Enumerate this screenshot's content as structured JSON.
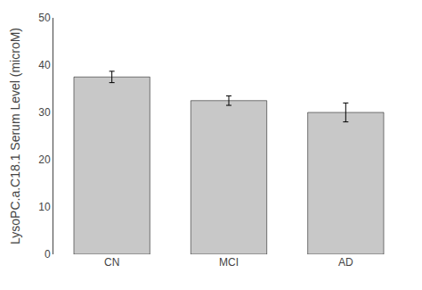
{
  "chart_data": {
    "type": "bar",
    "categories": [
      "CN",
      "MCI",
      "AD"
    ],
    "values": [
      37.5,
      32.5,
      30.0
    ],
    "errors": [
      1.2,
      1.0,
      2.0
    ],
    "color": "#c8c8c8",
    "ylabel": "LysoPC.a.C18.1 Serum Level (microM)",
    "ylim": [
      0,
      50
    ],
    "yticks": [
      0,
      10,
      20,
      30,
      40,
      50
    ],
    "grid": false
  }
}
